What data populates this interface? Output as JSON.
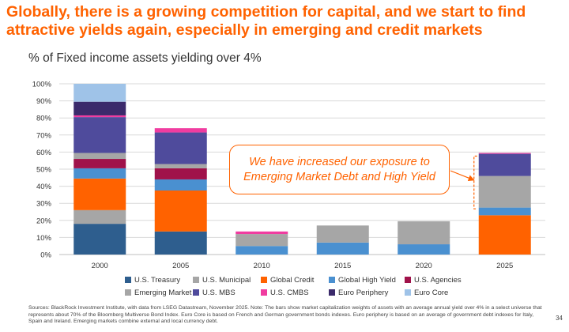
{
  "headline": {
    "line1": "Globally, there is a growing competition for capital, and we start to find",
    "line2": "attractive yields again, especially in emerging and credit markets"
  },
  "chart_data": {
    "type": "bar",
    "stacked": true,
    "title": "% of Fixed income assets yielding over 4%",
    "xlabel": "",
    "ylabel": "",
    "ylim": [
      0,
      100
    ],
    "yticks": [
      "0%",
      "10%",
      "20%",
      "30%",
      "40%",
      "50%",
      "60%",
      "70%",
      "80%",
      "90%",
      "100%"
    ],
    "categories": [
      "2000",
      "2005",
      "2010",
      "2015",
      "2020",
      "2025"
    ],
    "series": [
      {
        "name": "U.S. Treasury",
        "color": "#2e5e8e",
        "values": [
          18,
          13.5,
          0,
          0,
          0,
          0
        ]
      },
      {
        "name": "U.S. Municipal",
        "color": "#a6a6a6",
        "values": [
          8,
          0,
          0,
          0,
          0,
          0
        ]
      },
      {
        "name": "Global Credit",
        "color": "#ff6200",
        "values": [
          18.5,
          24,
          0,
          0,
          0,
          23
        ]
      },
      {
        "name": "Global High Yield",
        "color": "#4a90d0",
        "values": [
          6,
          6.5,
          5,
          7,
          6,
          4.5
        ]
      },
      {
        "name": "U.S. Agencies",
        "color": "#a0124a",
        "values": [
          5.5,
          6.5,
          0,
          0,
          0,
          0
        ]
      },
      {
        "name": "Emerging Market",
        "color": "#a6a6a6",
        "values": [
          3.5,
          2.5,
          7,
          10,
          13.5,
          18.5
        ]
      },
      {
        "name": "U.S. MBS",
        "color": "#4f4b9c",
        "values": [
          21,
          18.5,
          0,
          0,
          0,
          13
        ]
      },
      {
        "name": "U.S. CMBS",
        "color": "#f03ca0",
        "values": [
          1,
          2.5,
          1.5,
          0,
          0,
          0.5
        ]
      },
      {
        "name": "Euro Periphery",
        "color": "#3b2a6b",
        "values": [
          8,
          0,
          0,
          0,
          0,
          0
        ]
      },
      {
        "name": "Euro Core",
        "color": "#9fc3e8",
        "values": [
          10.5,
          0,
          0,
          0,
          0,
          0
        ]
      }
    ],
    "legend_position": "bottom",
    "legend_rows": [
      [
        "U.S. Treasury",
        "U.S. Municipal",
        "Global Credit",
        "Global High Yield",
        "U.S. Agencies"
      ],
      [
        "Emerging Market",
        "U.S. MBS",
        "U.S. CMBS",
        "Euro Periphery",
        "Euro Core"
      ]
    ],
    "annotation": {
      "line1": "We have increased our exposure to",
      "line2": "Emerging Market Debt and High Yield",
      "points_to": "2025"
    }
  },
  "footnote": "Sources: BlackRock Investment Institute, with data from LSEG Datastream, November 2025. Note: The bars show market capitalization weights of assets with an average annual yield over 4% in a select universe that represents about 70% of the Bloomberg Multiverse Bond Index. Euro Core is based on French and German government bonds indexes. Euro periphery is based on an average of government debt indexes for Italy, Spain and Ireland. Emerging markets combine external and local currency debt.",
  "page_number": "34",
  "colors": {
    "accent": "#ff6200",
    "grid": "#d9d9d9",
    "text": "#333333"
  }
}
